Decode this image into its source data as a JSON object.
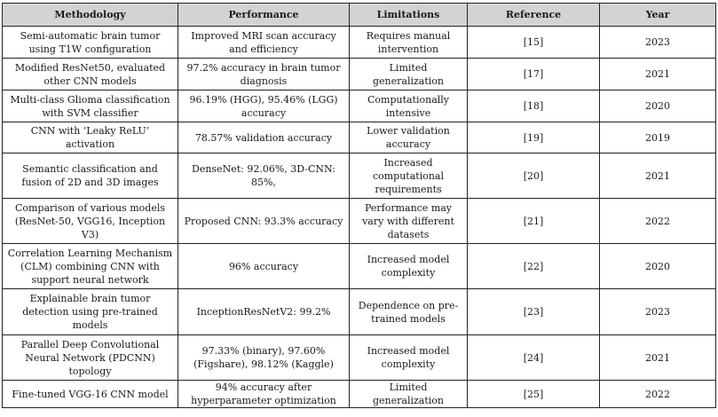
{
  "table": {
    "headers": {
      "methodology": "Methodology",
      "performance": "Performance",
      "limitations": "Limitations",
      "reference": "Reference",
      "year": "Year"
    },
    "rows": [
      {
        "methodology": "Semi-automatic brain tumor using T1W configuration",
        "performance": "Improved MRI scan accuracy and efficiency",
        "limitations": "Requires manual intervention",
        "reference": "[15]",
        "year": "2023"
      },
      {
        "methodology": "Modified ResNet50, evaluated other CNN models",
        "performance": "97.2% accuracy in brain tumor diagnosis",
        "limitations": "Limited generalization",
        "reference": "[17]",
        "year": "2021"
      },
      {
        "methodology": "Multi-class Glioma classification with SVM classifier",
        "performance": "96.19% (HGG), 95.46% (LGG) accuracy",
        "limitations": "Computationally intensive",
        "reference": "[18]",
        "year": "2020"
      },
      {
        "methodology": "CNN with ‘Leaky ReLU’ activation",
        "performance": "78.57% validation accuracy",
        "limitations": "Lower validation accuracy",
        "reference": "[19]",
        "year": "2019"
      },
      {
        "methodology": "Semantic classification and fusion of 2D and 3D images",
        "performance": "DenseNet: 92.06%, 3D-CNN: 85%,",
        "limitations": "Increased computational requirements",
        "reference": "[20]",
        "year": "2021"
      },
      {
        "methodology": "Comparison of various models (ResNet-50, VGG16, Inception V3)",
        "performance": "Proposed CNN: 93.3% accuracy",
        "limitations": "Performance may vary with different datasets",
        "reference": "[21]",
        "year": "2022"
      },
      {
        "methodology": "Correlation Learning Mechanism (CLM) combining CNN with support neural network",
        "performance": "96% accuracy",
        "limitations": "Increased model complexity",
        "reference": "[22]",
        "year": "2020"
      },
      {
        "methodology": "Explainable brain tumor detection using pre-trained models",
        "performance": "InceptionResNetV2: 99.2%",
        "limitations": "Dependence on pre-trained models",
        "reference": "[23]",
        "year": "2023"
      },
      {
        "methodology": "Parallel Deep Convolutional Neural Network (PDCNN) topology",
        "performance": "97.33% (binary), 97.60% (Figshare), 98.12% (Kaggle)",
        "limitations": "Increased model complexity",
        "reference": "[24]",
        "year": "2021"
      },
      {
        "methodology": "Fine-tuned VGG-16 CNN model",
        "performance": "94% accuracy after hyperparameter optimization",
        "limitations": "Limited generalization",
        "reference": "[25]",
        "year": "2022"
      }
    ]
  }
}
